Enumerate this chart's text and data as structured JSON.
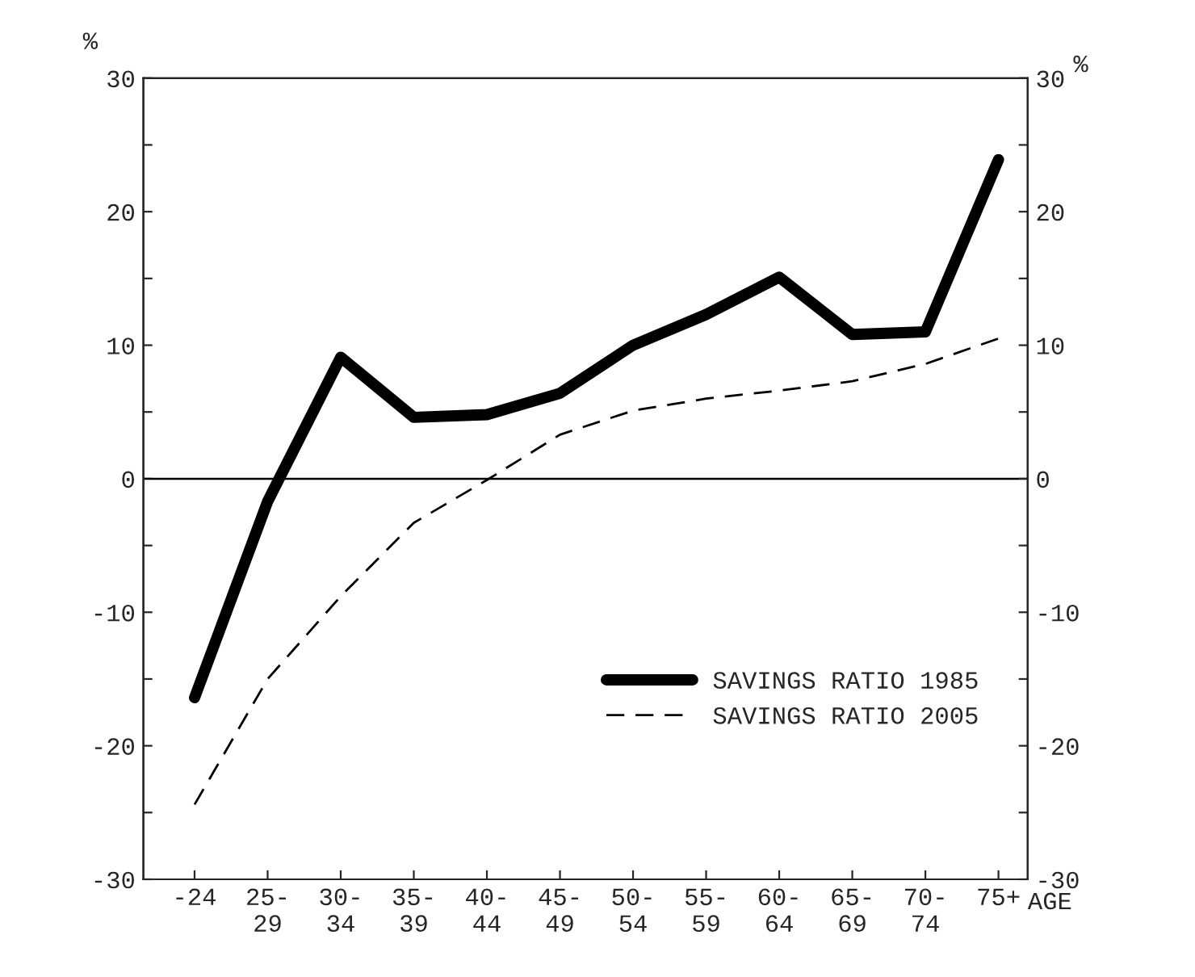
{
  "chart_data": {
    "type": "line",
    "categories": [
      "-24",
      "25-\n29",
      "30-\n34",
      "35-\n39",
      "40-\n44",
      "45-\n49",
      "50-\n54",
      "55-\n59",
      "60-\n64",
      "65-\n69",
      "70-\n74",
      "75+"
    ],
    "xlabel": "AGE",
    "ylabel": "%",
    "y2label": "%",
    "series": [
      {
        "name": "SAVINGS RATIO 1985",
        "color": "#000000",
        "line_style": "solid",
        "values": [
          -16.4,
          -1.7,
          9.1,
          4.6,
          4.8,
          6.4,
          10.0,
          12.3,
          15.1,
          10.8,
          11.0,
          23.9
        ]
      },
      {
        "name": "SAVINGS RATIO 2005",
        "color": "#000000",
        "line_style": "dashed",
        "values": [
          -24.4,
          -15.0,
          -8.8,
          -3.3,
          -0.1,
          3.3,
          5.1,
          6.0,
          6.6,
          7.3,
          8.6,
          10.5
        ]
      }
    ],
    "ylim": [
      -30,
      30
    ],
    "yticks": [
      -30,
      {
        "value": -25,
        "label": null
      },
      -20,
      {
        "value": -15,
        "label": null
      },
      -10,
      {
        "value": -5,
        "label": null
      },
      0,
      {
        "value": 5,
        "label": null
      },
      10,
      {
        "value": 15,
        "label": null
      },
      20,
      {
        "value": 25,
        "label": null
      },
      30
    ],
    "y2lim": [
      -30,
      30
    ],
    "y2ticks": [
      -30,
      {
        "value": -25,
        "label": null
      },
      -20,
      {
        "value": -15,
        "label": null
      },
      -10,
      {
        "value": -5,
        "label": null
      },
      0,
      {
        "value": 5,
        "label": null
      },
      10,
      {
        "value": 15,
        "label": null
      },
      20,
      {
        "value": 25,
        "label": null
      },
      30
    ],
    "ref_lines": [
      {
        "axis": "y",
        "value": 0,
        "label": null,
        "color": "#000000"
      }
    ],
    "grid": false,
    "legend": "bottom right",
    "marker": "none"
  }
}
